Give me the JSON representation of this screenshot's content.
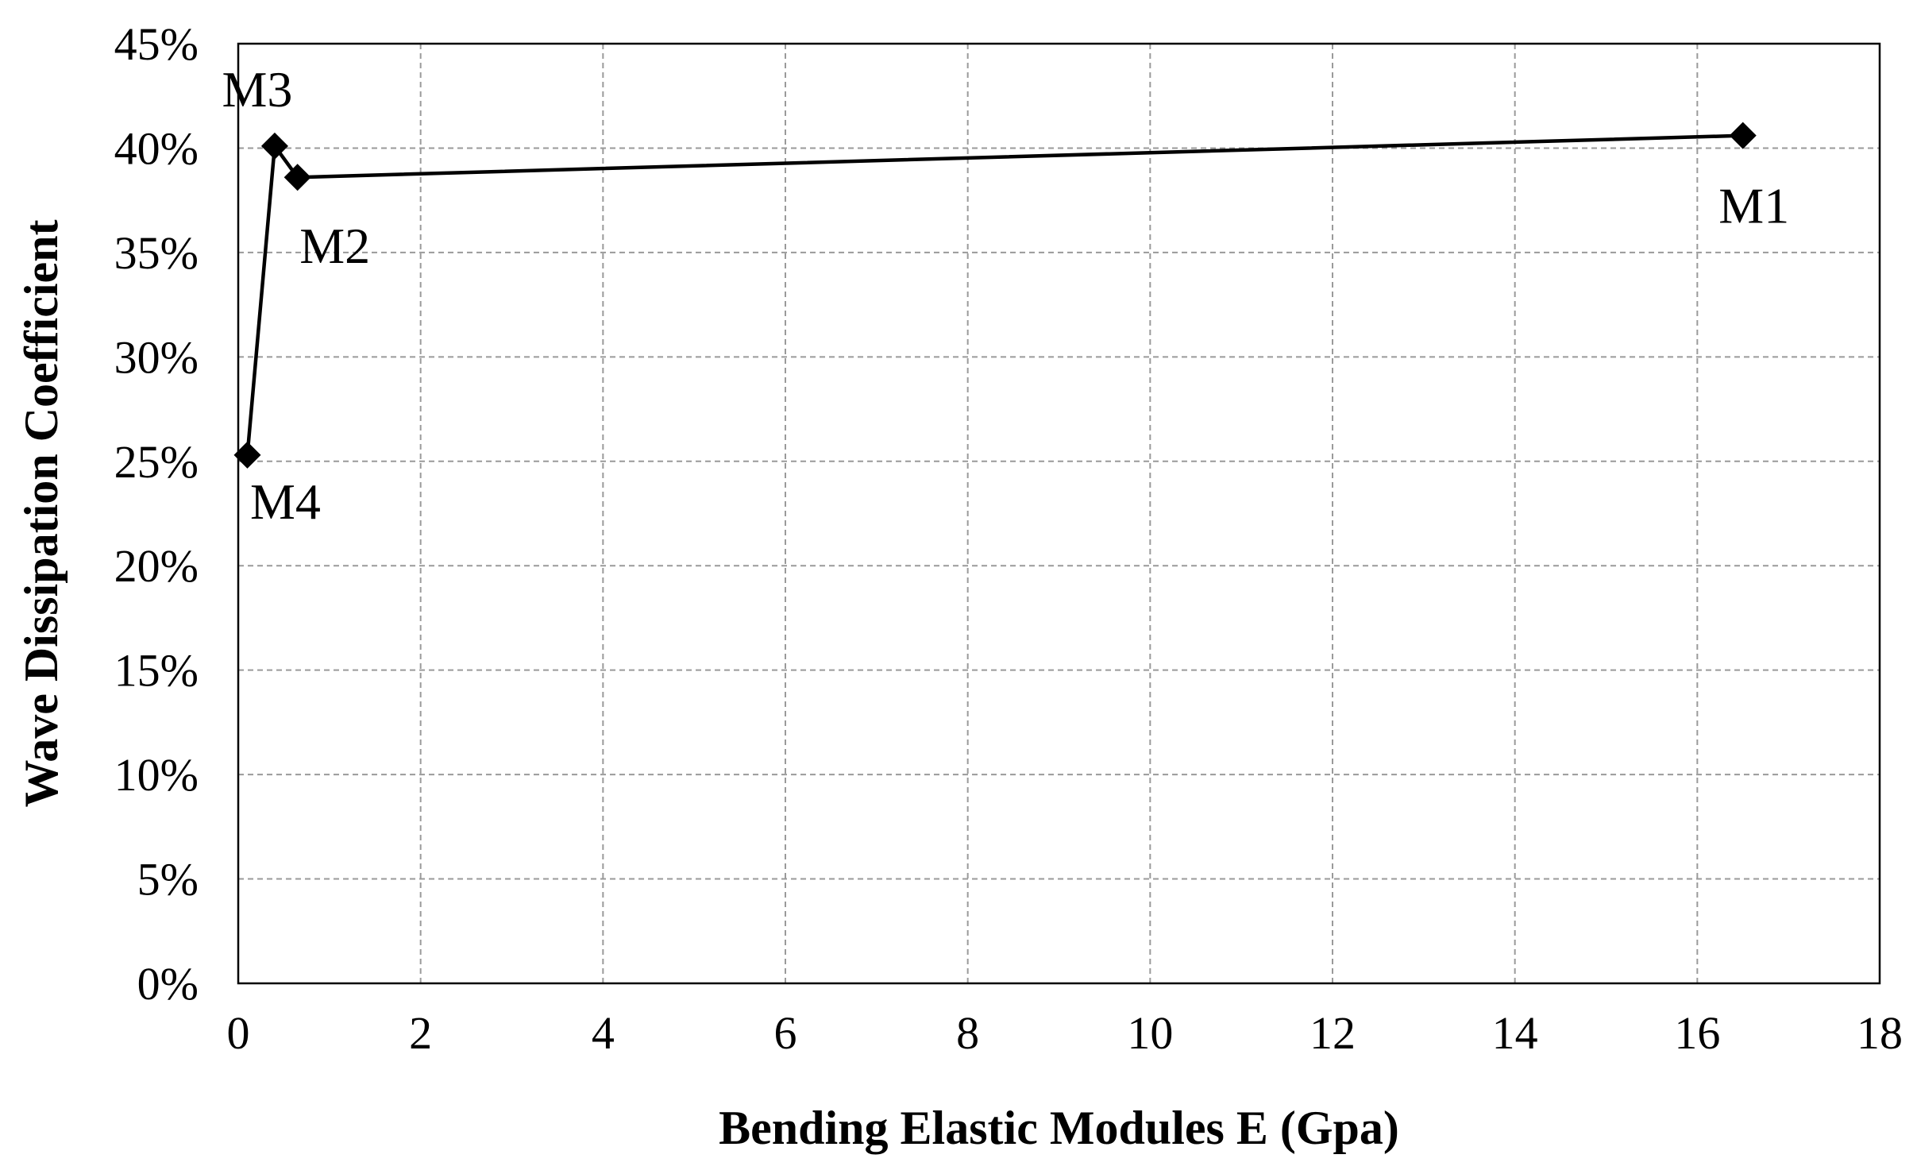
{
  "chart_data": {
    "type": "line",
    "title": "",
    "xlabel": "Bending Elastic Modules E (Gpa)",
    "ylabel": "Wave Dissipation Coefficient",
    "xlim": [
      0,
      18
    ],
    "ylim": [
      0,
      45
    ],
    "xticks": [
      0,
      2,
      4,
      6,
      8,
      10,
      12,
      14,
      16,
      18
    ],
    "yticks": [
      0,
      5,
      10,
      15,
      20,
      25,
      30,
      35,
      40,
      45
    ],
    "yunit": "%",
    "grid": true,
    "legend": "none",
    "series": [
      {
        "marker": "diamond",
        "color": "#000000",
        "x": [
          0.1,
          0.4,
          0.65,
          16.5
        ],
        "y": [
          25.3,
          40.1,
          38.6,
          40.6
        ],
        "labels": [
          "M4",
          "M3",
          "M2",
          "M1"
        ]
      }
    ]
  }
}
